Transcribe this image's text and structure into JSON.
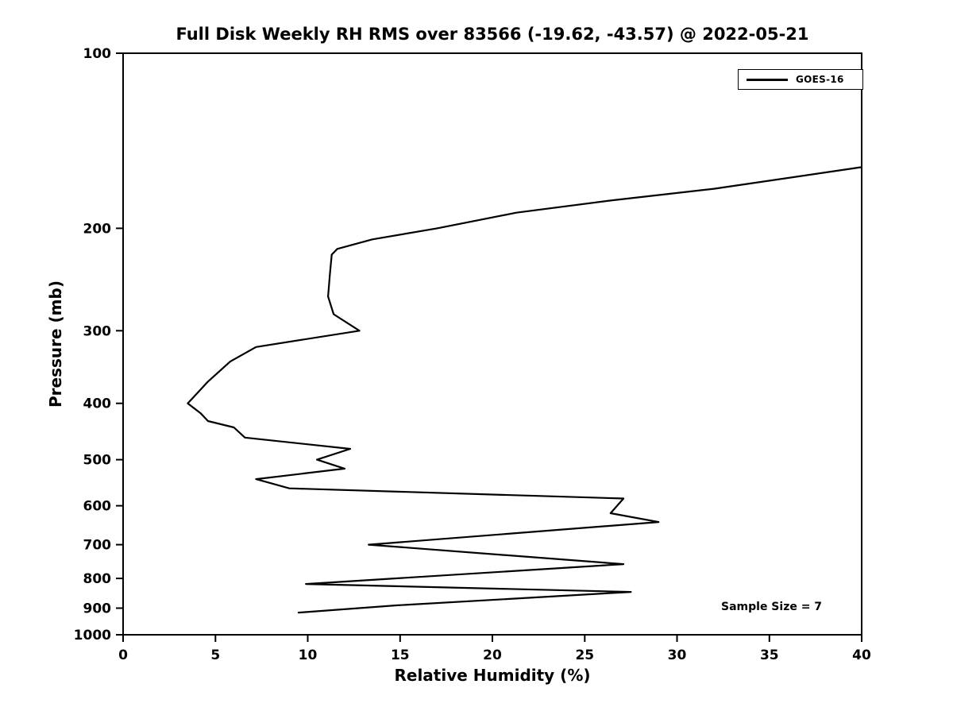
{
  "chart_data": {
    "type": "line",
    "title": "Full Disk Weekly RH RMS over 83566 (-19.62, -43.57) @ 2022-05-21",
    "xlabel": "Relative Humidity (%)",
    "ylabel": "Pressure (mb)",
    "xlim": [
      0,
      40
    ],
    "xticks": [
      0,
      5,
      10,
      15,
      20,
      25,
      30,
      35,
      40
    ],
    "ylim": [
      100,
      1000
    ],
    "yscale": "log",
    "y_axis_inverted": true,
    "yticks": [
      100,
      200,
      300,
      400,
      500,
      600,
      700,
      800,
      900,
      1000
    ],
    "grid": false,
    "legend": {
      "position": "upper right",
      "entries": [
        {
          "label": "GOES-16",
          "color": "#000000"
        }
      ]
    },
    "annotation": "Sample Size = 7",
    "series": [
      {
        "name": "GOES-16",
        "color": "#000000",
        "points": [
          {
            "rh_percent": 40.0,
            "pressure_mb": 157
          },
          {
            "rh_percent": 32.0,
            "pressure_mb": 171
          },
          {
            "rh_percent": 26.5,
            "pressure_mb": 179
          },
          {
            "rh_percent": 21.3,
            "pressure_mb": 188
          },
          {
            "rh_percent": 17.0,
            "pressure_mb": 200
          },
          {
            "rh_percent": 13.5,
            "pressure_mb": 209
          },
          {
            "rh_percent": 11.6,
            "pressure_mb": 217
          },
          {
            "rh_percent": 11.3,
            "pressure_mb": 222
          },
          {
            "rh_percent": 11.2,
            "pressure_mb": 240
          },
          {
            "rh_percent": 11.1,
            "pressure_mb": 262
          },
          {
            "rh_percent": 11.4,
            "pressure_mb": 281
          },
          {
            "rh_percent": 12.8,
            "pressure_mb": 300
          },
          {
            "rh_percent": 7.2,
            "pressure_mb": 320
          },
          {
            "rh_percent": 5.8,
            "pressure_mb": 339
          },
          {
            "rh_percent": 4.6,
            "pressure_mb": 367
          },
          {
            "rh_percent": 3.5,
            "pressure_mb": 400
          },
          {
            "rh_percent": 4.2,
            "pressure_mb": 416
          },
          {
            "rh_percent": 4.6,
            "pressure_mb": 429
          },
          {
            "rh_percent": 6.0,
            "pressure_mb": 440
          },
          {
            "rh_percent": 6.6,
            "pressure_mb": 458
          },
          {
            "rh_percent": 12.3,
            "pressure_mb": 479
          },
          {
            "rh_percent": 10.5,
            "pressure_mb": 500
          },
          {
            "rh_percent": 12.0,
            "pressure_mb": 518
          },
          {
            "rh_percent": 7.2,
            "pressure_mb": 540
          },
          {
            "rh_percent": 9.0,
            "pressure_mb": 560
          },
          {
            "rh_percent": 27.1,
            "pressure_mb": 583
          },
          {
            "rh_percent": 26.4,
            "pressure_mb": 618
          },
          {
            "rh_percent": 29.0,
            "pressure_mb": 640
          },
          {
            "rh_percent": 13.3,
            "pressure_mb": 700
          },
          {
            "rh_percent": 27.1,
            "pressure_mb": 756
          },
          {
            "rh_percent": 9.9,
            "pressure_mb": 818
          },
          {
            "rh_percent": 27.5,
            "pressure_mb": 844
          },
          {
            "rh_percent": 14.8,
            "pressure_mb": 890
          },
          {
            "rh_percent": 9.5,
            "pressure_mb": 916
          }
        ]
      }
    ]
  }
}
